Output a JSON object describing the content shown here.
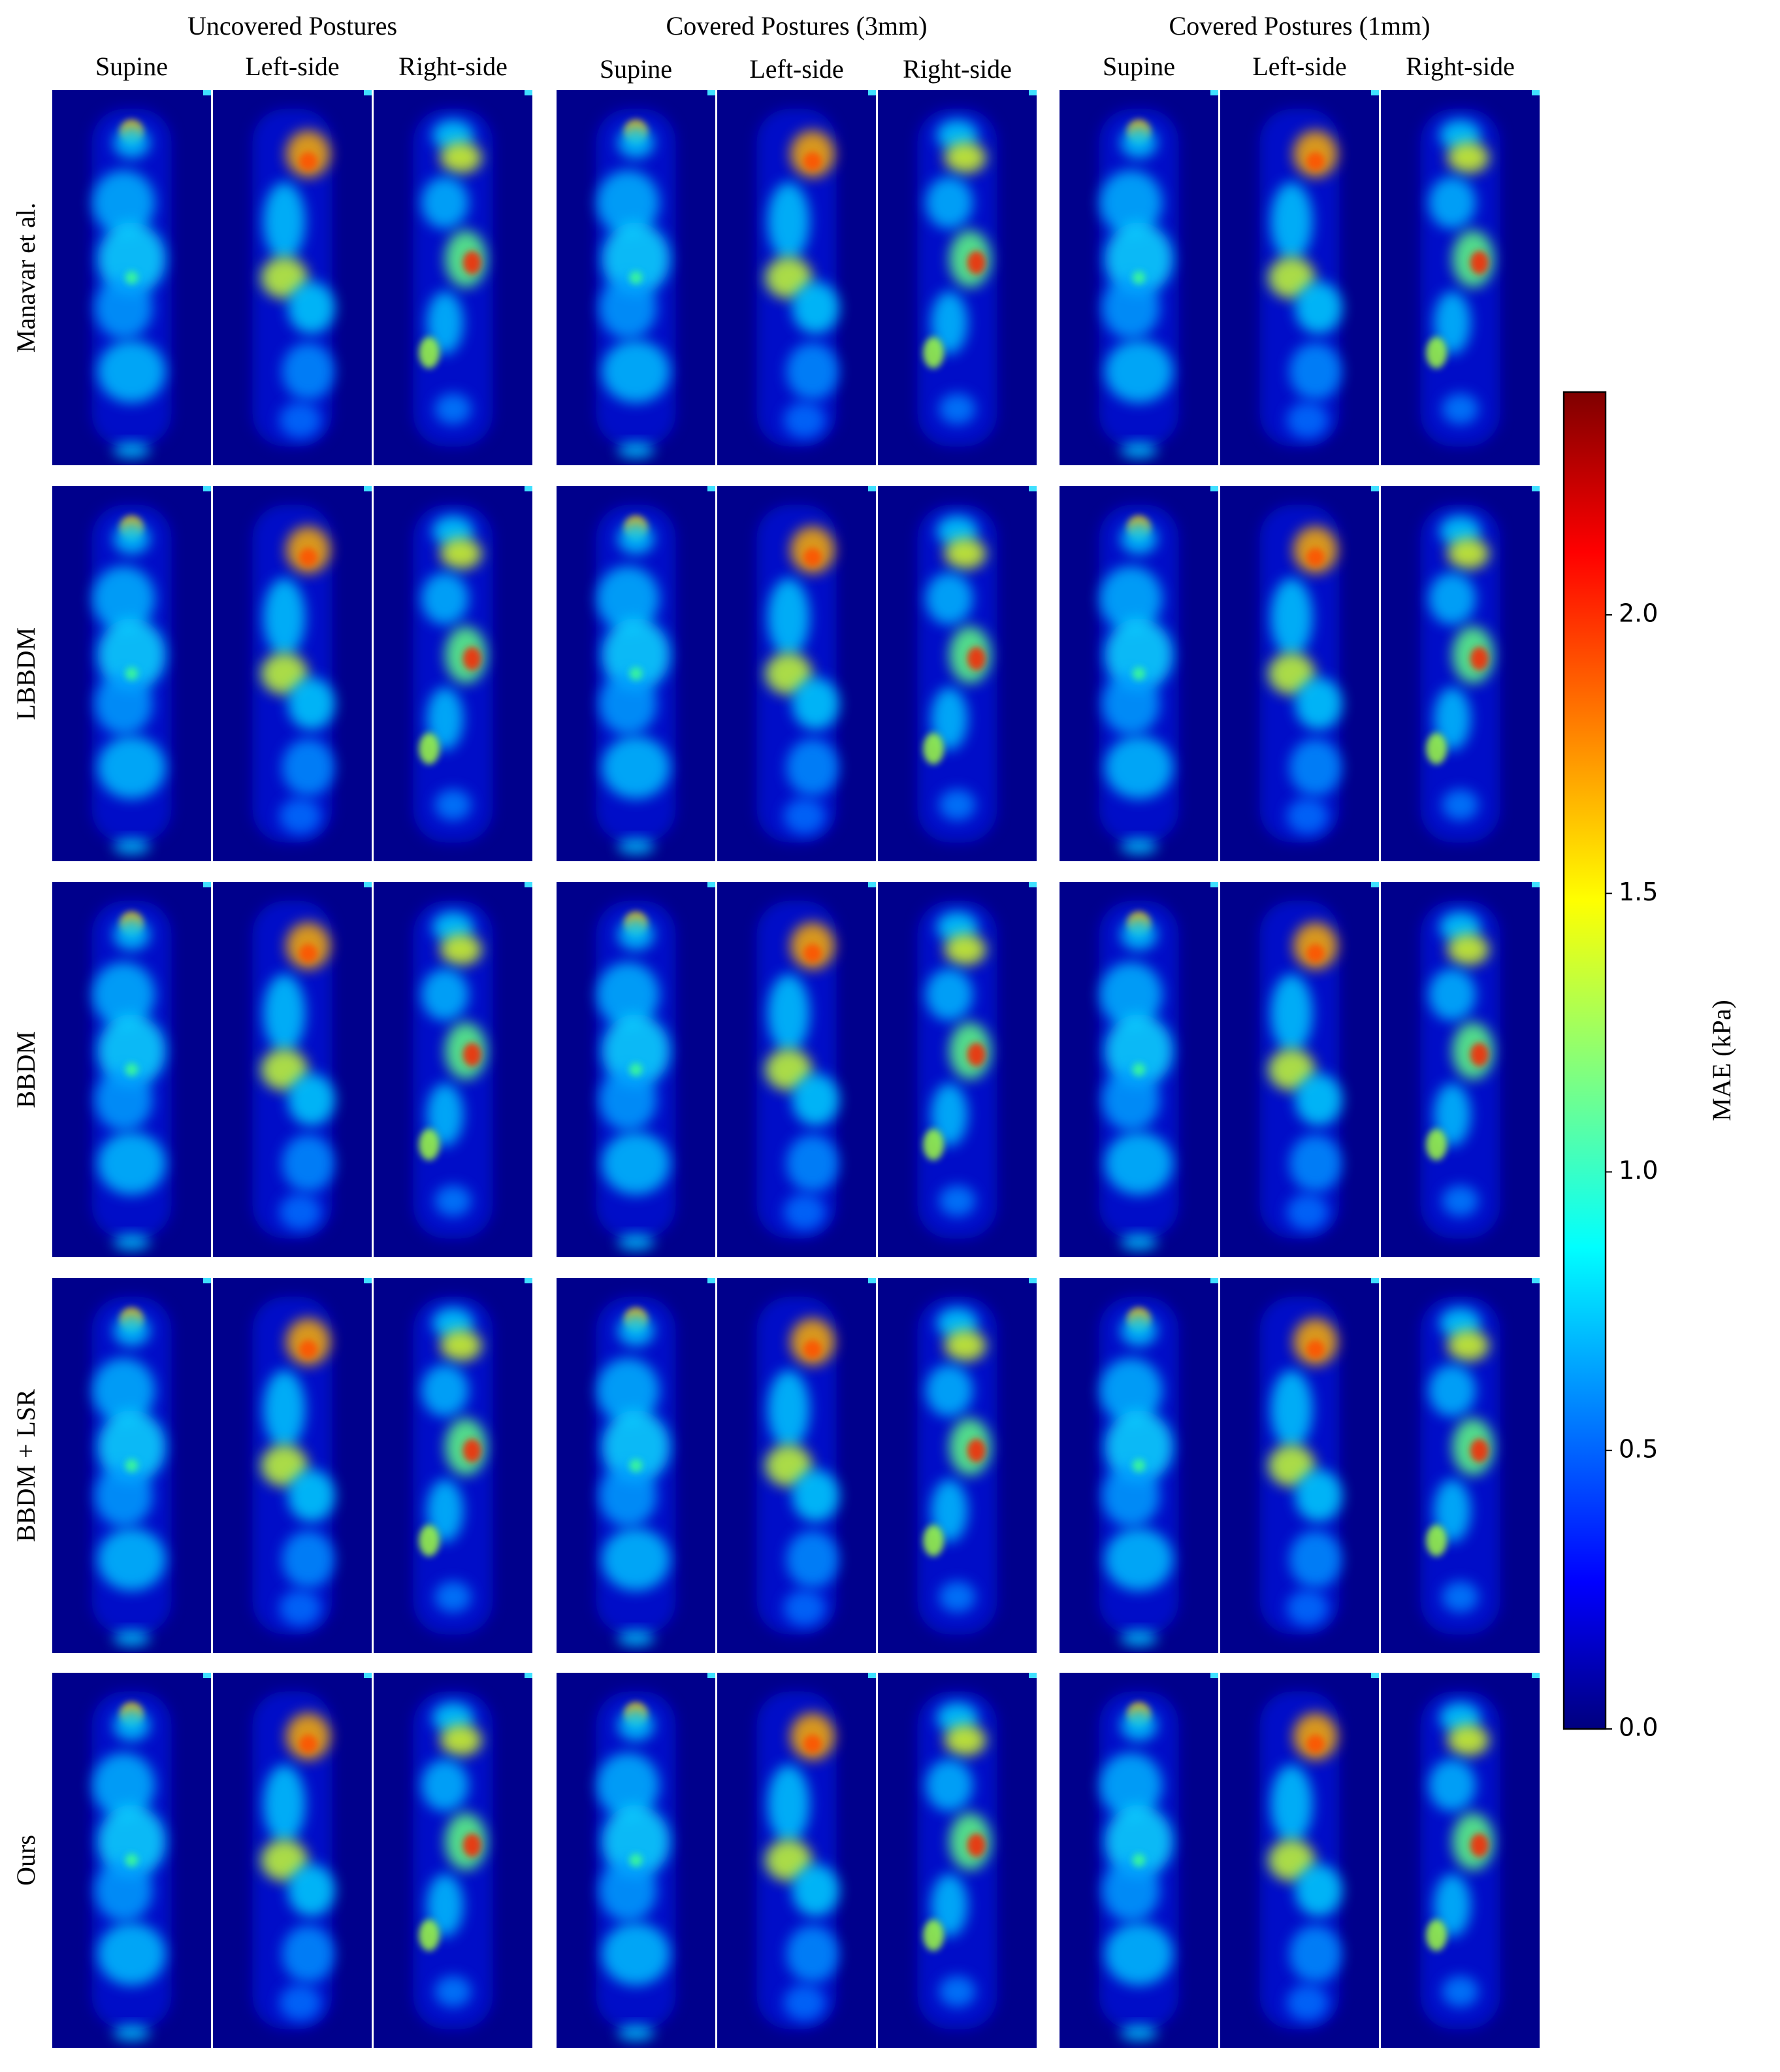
{
  "chart_data": {
    "type": "heatmap",
    "groups": [
      {
        "title": "Uncovered Postures",
        "columns": [
          "Supine",
          "Left-side",
          "Right-side"
        ]
      },
      {
        "title": "Covered Postures (3mm)",
        "columns": [
          "Supine",
          "Left-side",
          "Right-side"
        ]
      },
      {
        "title": "Covered Postures (1mm)",
        "columns": [
          "Supine",
          "Left-side",
          "Right-side"
        ]
      }
    ],
    "rows": [
      "Manavar et al.",
      "LBBDM",
      "BBDM",
      "BBDM + LSR",
      "Ours"
    ],
    "colorbar": {
      "label": "MAE (kPa)",
      "colormap": "jet",
      "lim": [
        0,
        2.4
      ],
      "ticks": [
        {
          "value": 0,
          "label": "0.0"
        },
        {
          "value": 0.5,
          "label": "0.5"
        },
        {
          "value": 1,
          "label": "1.0"
        },
        {
          "value": 1.5,
          "label": "1.5"
        },
        {
          "value": 2,
          "label": "2.0"
        }
      ]
    }
  }
}
